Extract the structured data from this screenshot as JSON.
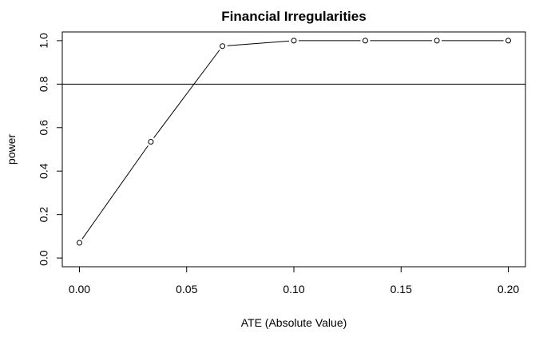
{
  "chart_data": {
    "type": "line",
    "title": "Financial Irregularities",
    "xlabel": "ATE (Absolute Value)",
    "ylabel": "power",
    "xlim": [
      -0.008,
      0.208
    ],
    "ylim": [
      -0.04,
      1.04
    ],
    "x_ticks": [
      0.0,
      0.05,
      0.1,
      0.15,
      0.2
    ],
    "x_tick_labels": [
      "0.00",
      "0.05",
      "0.10",
      "0.15",
      "0.20"
    ],
    "y_ticks": [
      0.0,
      0.2,
      0.4,
      0.6,
      0.8,
      1.0
    ],
    "y_tick_labels": [
      "0.0",
      "0.2",
      "0.4",
      "0.6",
      "0.8",
      "1.0"
    ],
    "series": [
      {
        "x": [
          0.0,
          0.0333,
          0.0667,
          0.1,
          0.1333,
          0.1667,
          0.2
        ],
        "y": [
          0.07,
          0.535,
          0.975,
          1.0,
          1.0,
          1.0,
          1.0
        ]
      }
    ],
    "reference_line": {
      "orientation": "horizontal",
      "y": 0.8
    },
    "grid": false,
    "line_color": "#000000",
    "marker": "open-circle"
  }
}
